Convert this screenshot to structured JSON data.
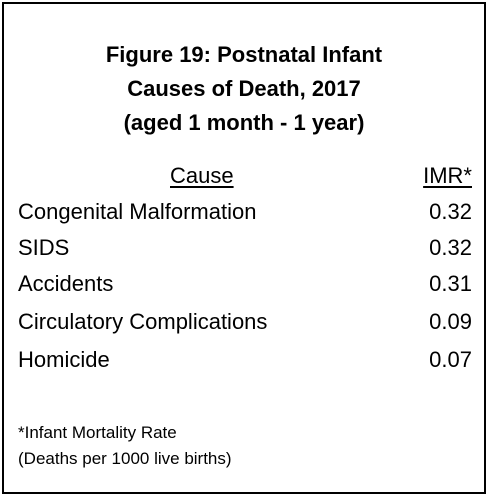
{
  "title": {
    "line1": "Figure 19: Postnatal Infant",
    "line2": "Causes of Death, 2017",
    "line3": "(aged 1 month - 1 year)"
  },
  "headers": {
    "cause": "Cause",
    "imr": "IMR*"
  },
  "rows": [
    {
      "cause": "Congenital Malformation",
      "imr": "0.32"
    },
    {
      "cause": "SIDS",
      "imr": "0.32"
    },
    {
      "cause": "Accidents",
      "imr": "0.31"
    },
    {
      "cause": "Circulatory Complications",
      "imr": "0.09"
    },
    {
      "cause": "Homicide",
      "imr": "0.07"
    }
  ],
  "footnote": {
    "line1": "*Infant Mortality Rate",
    "line2": "(Deaths per 1000 live births)"
  }
}
